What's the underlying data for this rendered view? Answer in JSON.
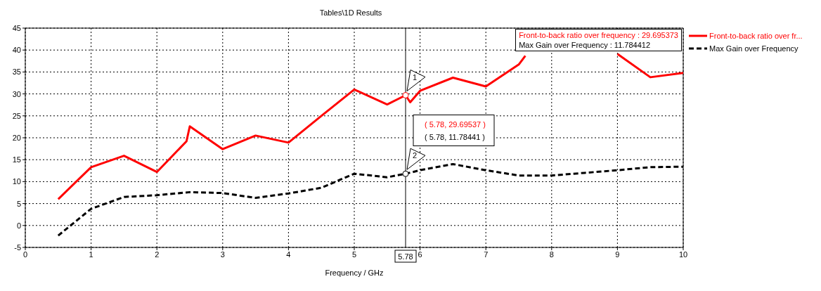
{
  "chart_data": {
    "type": "line",
    "title": "Tables\\1D Results",
    "xlabel": "Frequency / GHz",
    "xlim": [
      0,
      10
    ],
    "xticks": [
      0,
      1,
      2,
      3,
      4,
      5,
      6,
      7,
      8,
      9,
      10
    ],
    "ylim": [
      -5,
      45
    ],
    "yticks": [
      -5,
      0,
      5,
      10,
      15,
      20,
      25,
      30,
      35,
      40,
      45
    ],
    "grid": true,
    "legend": "right",
    "series": [
      {
        "name": "Front-to-back ratio over fr...",
        "color": "#ff0000",
        "line_style": "solid",
        "x": [
          0.5,
          1,
          1.5,
          2,
          2.45,
          2.5,
          3,
          3.5,
          4,
          4.5,
          5,
          5.5,
          5.78,
          5.85,
          6,
          6.5,
          7,
          7.5,
          7.6,
          8,
          8.5,
          9,
          9.5,
          10
        ],
        "values": [
          6,
          13.3,
          15.9,
          12.2,
          19.2,
          22.6,
          17.4,
          20.5,
          18.9,
          25,
          31,
          27.6,
          29.7,
          28.1,
          30.7,
          33.7,
          31.7,
          36.7,
          38.7,
          null,
          null,
          39.1,
          33.8,
          34.8
        ]
      },
      {
        "name": "Max Gain over Frequency",
        "color": "#000000",
        "line_style": "dashed",
        "x": [
          0.5,
          1,
          1.5,
          2,
          2.5,
          3,
          3.5,
          4,
          4.5,
          5,
          5.5,
          5.78,
          6,
          6.5,
          7,
          7.5,
          8,
          8.5,
          9,
          9.5,
          10
        ],
        "values": [
          -2.3,
          3.8,
          6.5,
          6.9,
          7.6,
          7.4,
          6.3,
          7.3,
          8.6,
          11.8,
          11,
          11.8,
          12.6,
          14,
          12.6,
          11.4,
          11.4,
          12,
          12.6,
          13.3,
          13.4
        ]
      }
    ],
    "ref_lines": [
      {
        "axis": "x",
        "value": 5.78,
        "label": "5.78",
        "color": "#000000"
      }
    ],
    "annotations": [
      "Front-to-back ratio over frequency : 29.695373",
      "Max Gain over Frequency : 11.784412",
      "( 5.78, 29.69537 )",
      "( 5.78, 11.78441 )",
      {
        "text": "1",
        "x": 5.78,
        "y": 29.69537
      },
      {
        "text": "2",
        "x": 5.78,
        "y": 11.78441
      }
    ]
  }
}
